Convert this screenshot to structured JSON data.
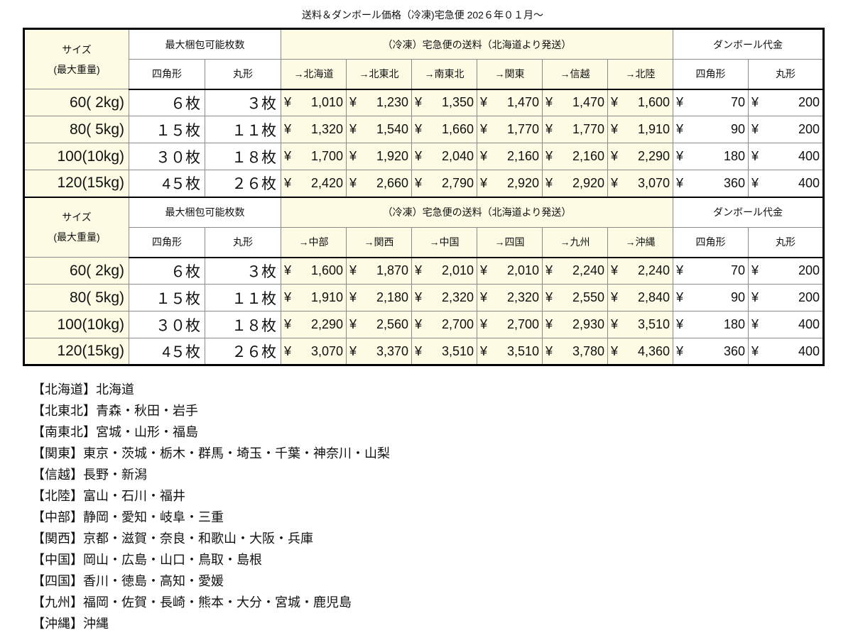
{
  "title": "送料＆ダンボール価格（冷凍)宅急便 202６年０１月〜",
  "header": {
    "size_label": "サイズ",
    "size_sub": "(最大重量)",
    "count_label": "最大梱包可能枚数",
    "freight_label": "（冷凍）宅急便の送料（北海道より発送）",
    "carton_label": "ダンボール代金",
    "square": "四角形",
    "round": "丸形"
  },
  "currency": "¥",
  "blocks": [
    {
      "destinations": [
        "→北海道",
        "→北東北",
        "→南東北",
        "→関東",
        "→信越",
        "→北陸"
      ],
      "rows": [
        {
          "size": "60( 2kg)",
          "square": "６枚",
          "round": "３枚",
          "freight": [
            "1,010",
            "1,230",
            "1,350",
            "1,470",
            "1,470",
            "1,600"
          ],
          "carton": [
            "70",
            "200"
          ]
        },
        {
          "size": "80( 5kg)",
          "square": "１５枚",
          "round": "１１枚",
          "freight": [
            "1,320",
            "1,540",
            "1,660",
            "1,770",
            "1,770",
            "1,910"
          ],
          "carton": [
            "90",
            "200"
          ]
        },
        {
          "size": "100(10kg)",
          "square": "３０枚",
          "round": "１８枚",
          "freight": [
            "1,700",
            "1,920",
            "2,040",
            "2,160",
            "2,160",
            "2,290"
          ],
          "carton": [
            "180",
            "400"
          ]
        },
        {
          "size": "120(15kg)",
          "square": "4５枚",
          "round": "２６枚",
          "freight": [
            "2,420",
            "2,660",
            "2,790",
            "2,920",
            "2,920",
            "3,070"
          ],
          "carton": [
            "360",
            "400"
          ]
        }
      ]
    },
    {
      "destinations": [
        "→中部",
        "→関西",
        "→中国",
        "→四国",
        "→九州",
        "→沖縄"
      ],
      "rows": [
        {
          "size": "60( 2kg)",
          "square": "６枚",
          "round": "３枚",
          "freight": [
            "1,600",
            "1,870",
            "2,010",
            "2,010",
            "2,240",
            "2,240"
          ],
          "carton": [
            "70",
            "200"
          ]
        },
        {
          "size": "80( 5kg)",
          "square": "１５枚",
          "round": "１１枚",
          "freight": [
            "1,910",
            "2,180",
            "2,320",
            "2,320",
            "2,550",
            "2,840"
          ],
          "carton": [
            "90",
            "200"
          ]
        },
        {
          "size": "100(10kg)",
          "square": "３０枚",
          "round": "１８枚",
          "freight": [
            "2,290",
            "2,560",
            "2,700",
            "2,700",
            "2,930",
            "3,510"
          ],
          "carton": [
            "180",
            "400"
          ]
        },
        {
          "size": "120(15kg)",
          "square": "4５枚",
          "round": "２６枚",
          "freight": [
            "3,070",
            "3,370",
            "3,510",
            "3,510",
            "3,780",
            "4,360"
          ],
          "carton": [
            "360",
            "400"
          ]
        }
      ]
    }
  ],
  "legend": [
    "【北海道】北海道",
    "【北東北】青森・秋田・岩手",
    "【南東北】宮城・山形・福島",
    "【関東】東京・茨城・栃木・群馬・埼玉・千葉・神奈川・山梨",
    "【信越】長野・新潟",
    "【北陸】富山・石川・福井",
    "【中部】静岡・愛知・岐阜・三重",
    "【関西】京都・滋賀・奈良・和歌山・大阪・兵庫",
    "【中国】岡山・広島・山口・鳥取・島根",
    "【四国】香川・徳島・高知・愛媛",
    "【九州】福岡・佐賀・長崎・熊本・大分・宮城・鹿児島",
    "【沖縄】沖縄"
  ],
  "colors": {
    "highlight": "#fdfbe3",
    "border": "#000000",
    "grid": "#8a8a8a"
  }
}
